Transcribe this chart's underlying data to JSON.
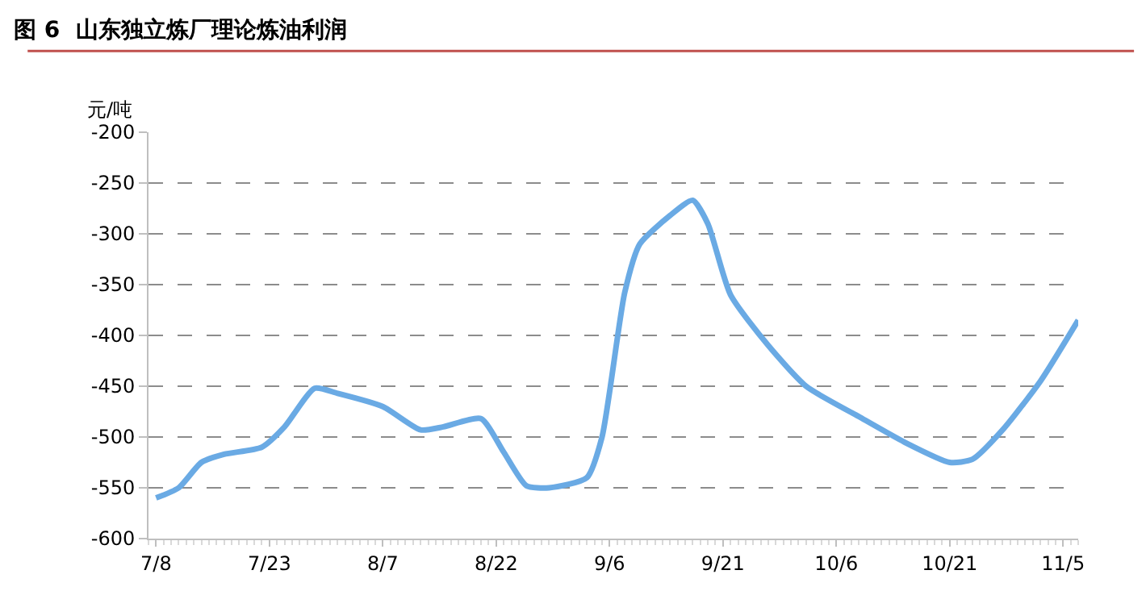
{
  "chart_data": {
    "type": "line",
    "title": "图 6  山东独立炼厂理论炼油利润",
    "ylabel": "元/吨",
    "x": [
      "--07-08",
      "--07-11",
      "--07-14",
      "--07-17",
      "--07-22",
      "--07-25",
      "--07-29",
      "--08-01",
      "--08-07",
      "--08-12",
      "--08-15",
      "--08-20",
      "--08-23",
      "--08-26",
      "--08-29",
      "--09-03",
      "--09-05",
      "--09-08",
      "--09-10",
      "--09-14",
      "--09-17",
      "--09-19",
      "--09-22",
      "--09-27",
      "--10-02",
      "--10-09",
      "--10-15",
      "--10-21",
      "--10-24",
      "--10-28",
      "--11-02",
      "--11-07"
    ],
    "series": [
      {
        "color": "#6aaae4",
        "values": [
          -560,
          -550,
          -525,
          -517,
          -510,
          -490,
          -452,
          -457,
          -470,
          -493,
          -490,
          -482,
          -515,
          -548,
          -550,
          -540,
          -500,
          -358,
          -310,
          -282,
          -267,
          -290,
          -360,
          -410,
          -450,
          -480,
          -505,
          -525,
          -522,
          -493,
          -445,
          -385
        ]
      }
    ],
    "xlim": [
      "--07-07",
      "--11-07"
    ],
    "xticks": [
      {
        "value": "--07-08",
        "label": "7/8"
      },
      {
        "value": "--07-23",
        "label": "7/23"
      },
      {
        "value": "--08-07",
        "label": "8/7"
      },
      {
        "value": "--08-22",
        "label": "8/22"
      },
      {
        "value": "--09-06",
        "label": "9/6"
      },
      {
        "value": "--09-21",
        "label": "9/21"
      },
      {
        "value": "--10-06",
        "label": "10/6"
      },
      {
        "value": "--10-21",
        "label": "10/21"
      },
      {
        "value": "--11-05",
        "label": "11/5"
      }
    ],
    "ylim": [
      -600,
      -200
    ],
    "yticks": [
      -600,
      -550,
      -500,
      -450,
      -400,
      -350,
      -300,
      -250,
      -200
    ],
    "grid": "y",
    "legend": false,
    "marker": "none",
    "line_style": "solid"
  }
}
